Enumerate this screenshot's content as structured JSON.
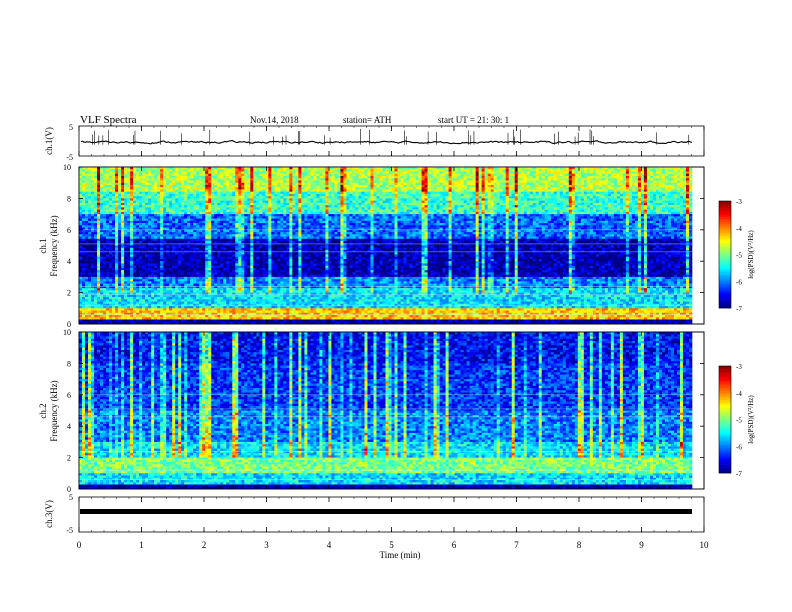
{
  "header": {
    "title": "VLF  Spectra",
    "date": "Nov.14, 2018",
    "station": "station= ATH",
    "start": "start  UT  =   21: 30: 1"
  },
  "chart_data": [
    {
      "type": "line",
      "ylabel": "ch.1(V)",
      "ylim": [
        -5,
        5
      ],
      "yticks": [
        "5",
        "-5"
      ],
      "xlim": [
        0,
        10
      ],
      "series": [
        {
          "values_note_free": true,
          "mean": -0.4,
          "noise": 0.35
        }
      ]
    },
    {
      "type": "heatmap",
      "ylabel": "ch.1\nFrequency  (kHz)",
      "ylabel_lines": [
        "ch.1",
        "Frequency  (kHz)"
      ],
      "ylim": [
        0,
        10
      ],
      "yticks": [
        "0",
        "2",
        "4",
        "6",
        "8",
        "10"
      ],
      "xlim": [
        0,
        9.8
      ],
      "colorbar": {
        "label": "log(PSD)(V²/Hz)",
        "range": [
          -7,
          -3
        ],
        "ticks": [
          "-3",
          "-4",
          "-5",
          "-6",
          "-7"
        ]
      },
      "bands_log_psd": [
        {
          "f": [
            0,
            0.3
          ],
          "v": -6.9
        },
        {
          "f": [
            0.3,
            1.0
          ],
          "v": -4.3
        },
        {
          "f": [
            1.0,
            2.3
          ],
          "v": -5.6
        },
        {
          "f": [
            2.3,
            3.0
          ],
          "v": -6.0
        },
        {
          "f": [
            3.0,
            5.5
          ],
          "v": -6.8
        },
        {
          "f": [
            5.5,
            7.0
          ],
          "v": -6.1
        },
        {
          "f": [
            7.0,
            8.5
          ],
          "v": -5.3
        },
        {
          "f": [
            8.5,
            10.0
          ],
          "v": -4.8
        }
      ]
    },
    {
      "type": "heatmap",
      "ylabel": "ch.2\nFrequency  (kHz)",
      "ylabel_lines": [
        "ch.2",
        "Frequency  (kHz)"
      ],
      "ylim": [
        0,
        10
      ],
      "yticks": [
        "0",
        "2",
        "4",
        "6",
        "8",
        "10"
      ],
      "xlim": [
        0,
        9.8
      ],
      "colorbar": {
        "label": "log(PSD)(V²/Hz)",
        "range": [
          -7,
          -3
        ],
        "ticks": [
          "-3",
          "-4",
          "-5",
          "-6",
          "-7"
        ]
      },
      "bands_log_psd": [
        {
          "f": [
            0,
            0.3
          ],
          "v": -6.9
        },
        {
          "f": [
            0.3,
            1.0
          ],
          "v": -5.6
        },
        {
          "f": [
            1.0,
            2.0
          ],
          "v": -5.0
        },
        {
          "f": [
            2.0,
            3.0
          ],
          "v": -5.6
        },
        {
          "f": [
            3.0,
            5.0
          ],
          "v": -6.0
        },
        {
          "f": [
            5.0,
            8.0
          ],
          "v": -6.3
        },
        {
          "f": [
            8.0,
            10.0
          ],
          "v": -6.5
        }
      ]
    },
    {
      "type": "line",
      "ylabel": "ch.3(V)",
      "ylim": [
        -5,
        5
      ],
      "yticks": [
        "5",
        "-5"
      ],
      "xlim": [
        0,
        10
      ],
      "xlabel": "Time  (min)",
      "xticks": [
        "0",
        "1",
        "2",
        "3",
        "4",
        "5",
        "6",
        "7",
        "8",
        "9",
        "10"
      ],
      "series": [
        {
          "mean": 0.0,
          "noise": 0.0
        }
      ]
    }
  ]
}
